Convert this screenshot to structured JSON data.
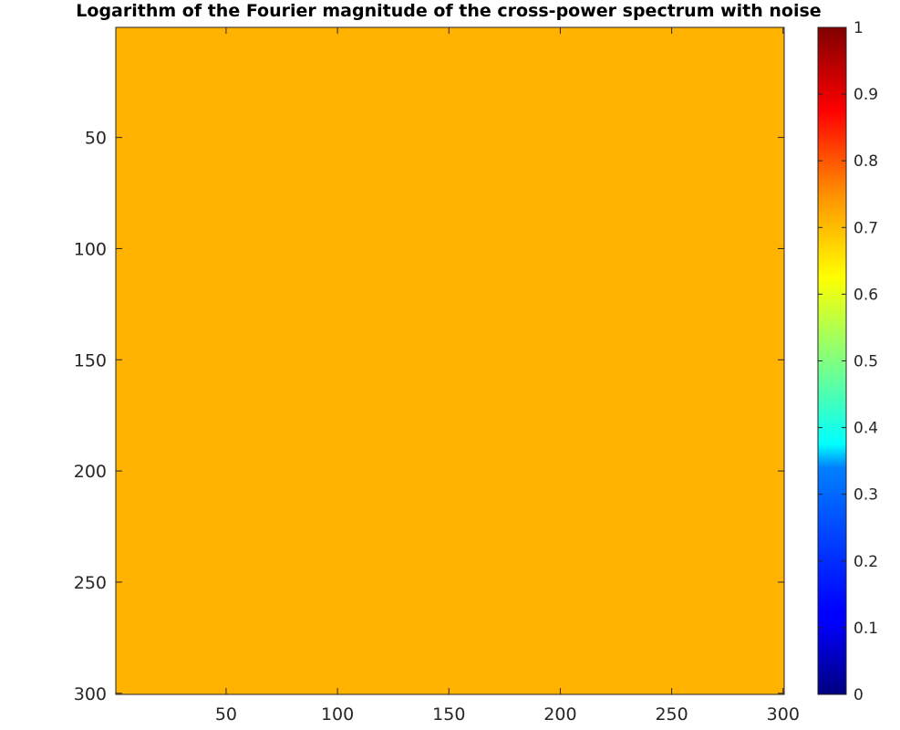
{
  "chart_data": {
    "type": "heatmap",
    "title": "Logarithm of the Fourier magnitude of the cross-power spectrum with noise",
    "xlabel": "",
    "ylabel": "",
    "xlim": [
      0.5,
      300.5
    ],
    "ylim": [
      0.5,
      300.5
    ],
    "y_direction": "reverse",
    "x_ticks": [
      50,
      100,
      150,
      200,
      250,
      300
    ],
    "y_ticks": [
      50,
      100,
      150,
      200,
      250,
      300
    ],
    "x_tick_labels": [
      "50",
      "100",
      "150",
      "200",
      "250",
      "300"
    ],
    "y_tick_labels": [
      "50",
      "100",
      "150",
      "200",
      "250",
      "300"
    ],
    "grid": false,
    "image": {
      "rows": 300,
      "cols": 300,
      "uniform_value": 0.7
    },
    "colorbar": {
      "colormap": "jet",
      "location": "right",
      "limits": [
        0,
        1
      ],
      "ticks": [
        0,
        0.1,
        0.2,
        0.3,
        0.4,
        0.5,
        0.6,
        0.7,
        0.8,
        0.9,
        1
      ],
      "tick_labels": [
        "0",
        "0.1",
        "0.2",
        "0.3",
        "0.4",
        "0.5",
        "0.6",
        "0.7",
        "0.8",
        "0.9",
        "1"
      ]
    }
  }
}
